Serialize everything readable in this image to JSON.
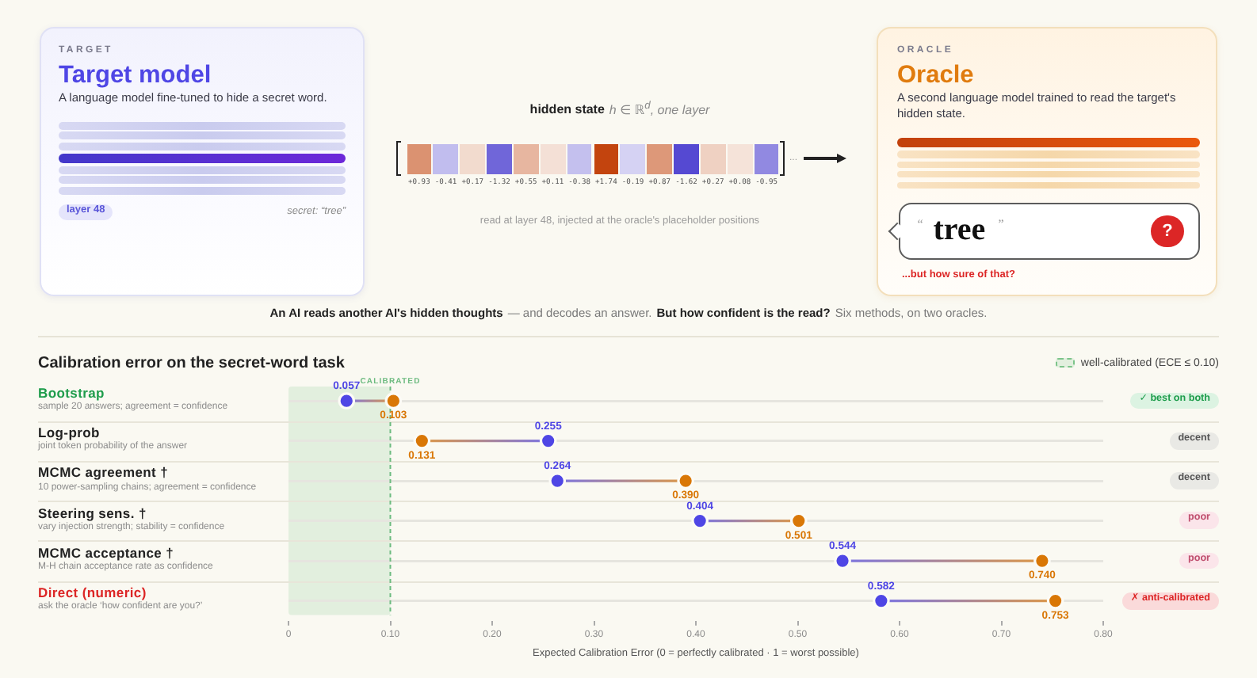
{
  "chart_data": [
    {
      "type": "other",
      "annotations": [
        "TARGET",
        "Target model",
        "A language model fine-tuned to hide a secret word.",
        "layer 48",
        "secret: “tree”",
        "hidden state",
        "h ∈ ℝ$^{d}$, one layer",
        "...",
        "read at layer 48, injected at the oracle's placeholder positions",
        "ORACLE",
        "Oracle",
        "A second language model trained to read the target's hidden state.",
        "“",
        "tree",
        "”",
        "?",
        "...but how sure of that?",
        "An AI reads another AI's hidden thoughts",
        "— and decodes an answer.",
        "But how confident is the read?",
        "Six methods, on two oracles."
      ],
      "values": [
        0.93,
        -0.41,
        0.17,
        -1.32,
        0.55,
        0.11,
        -0.38,
        1.74,
        -0.19,
        0.87,
        -1.62,
        0.27,
        0.08,
        -0.95
      ],
      "value_labels": [
        "+0.93",
        "-0.41",
        "+0.17",
        "-1.32",
        "+0.55",
        "+0.11",
        "-0.38",
        "+1.74",
        "-0.19",
        "+0.87",
        "-1.62",
        "+0.27",
        "+0.08",
        "-0.95"
      ]
    },
    {
      "type": "scatter",
      "orientation": "horizontal",
      "title": "Calibration error on the secret-word task",
      "xlabel": "Expected Calibration Error (0 = perfectly calibrated · 1 = worst possible)",
      "categories": [
        "Bootstrap",
        "Log-prob",
        "MCMC agreement †",
        "Steering sens. †",
        "MCMC acceptance †",
        "Direct (numeric)"
      ],
      "series": [
        {
          "color": "#4f46e5",
          "values": [
            0.057,
            0.255,
            0.264,
            0.404,
            0.544,
            0.582
          ],
          "value_labels": [
            "0.057",
            "0.255",
            "0.264",
            "0.404",
            "0.544",
            "0.582"
          ]
        },
        {
          "color": "#d97706",
          "values": [
            0.103,
            0.131,
            0.39,
            0.501,
            0.74,
            0.753
          ],
          "value_labels": [
            "0.103",
            "0.131",
            "0.390",
            "0.501",
            "0.740",
            "0.753"
          ]
        }
      ],
      "xlim": [
        0,
        0.8
      ],
      "xticks": [
        0,
        {
          "value": 0.1,
          "label": "0.10"
        },
        {
          "value": 0.2,
          "label": "0.20"
        },
        {
          "value": 0.3,
          "label": "0.30"
        },
        {
          "value": 0.4,
          "label": "0.40"
        },
        {
          "value": 0.5,
          "label": "0.50"
        },
        {
          "value": 0.6,
          "label": "0.60"
        },
        {
          "value": 0.7,
          "label": "0.70"
        },
        {
          "value": 0.8,
          "label": "0.80"
        }
      ],
      "grid": "y",
      "legend": "top right",
      "marker": "circle",
      "bands": [
        {
          "axis": "x",
          "from": 0,
          "to": 0.1,
          "label": "well-calibrated (ECE ≤ 0.10)",
          "color": "#e2efde"
        }
      ],
      "ref_lines": [
        {
          "axis": "x",
          "value": 0.1,
          "label": "CALIBRATED",
          "color": "#6dbb80",
          "line_style": "dashed"
        }
      ],
      "annotations": [
        "sample 20 answers; agreement = confidence",
        "joint token probability of the answer",
        "10 power-sampling chains; agreement = confidence",
        "vary injection strength; stability = confidence",
        "M-H chain acceptance rate as confidence",
        "ask the oracle ‘how confident are you?’",
        "✓ best on both",
        "decent",
        "decent",
        "poor",
        "poor",
        "✗ anti-calibrated"
      ]
    }
  ]
}
